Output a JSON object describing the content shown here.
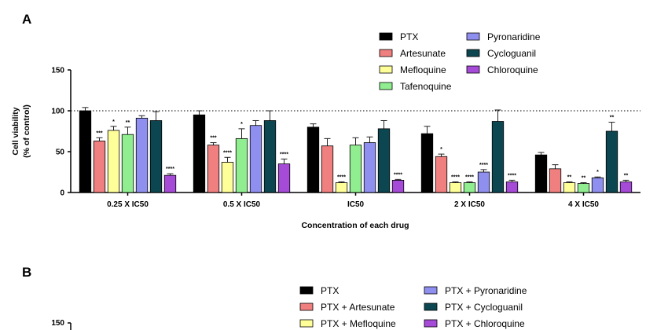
{
  "panel_a": {
    "label": "A",
    "chart_data": {
      "type": "bar",
      "categories": [
        "0.25 X IC50",
        "0.5 X IC50",
        "IC50",
        "2 X IC50",
        "4 X IC50"
      ],
      "ylabel_line1": "Cell viability",
      "ylabel_line2": "(% of control)",
      "xlabel": "Concentration of each drug",
      "ylim": [
        0,
        150
      ],
      "yticks": [
        "0",
        "50",
        "100",
        "150"
      ],
      "reference_line": 100,
      "series": [
        {
          "name": "PTX",
          "color": "#000000",
          "values": [
            100,
            95,
            80,
            72,
            46
          ],
          "errors": [
            4,
            5,
            4,
            9,
            3
          ],
          "stars": [
            "",
            "",
            "",
            "",
            ""
          ]
        },
        {
          "name": "Artesunate",
          "color": "#f08080",
          "values": [
            63,
            58,
            57,
            44,
            29
          ],
          "errors": [
            4,
            3,
            9,
            3,
            5
          ],
          "stars": [
            "***",
            "***",
            "",
            "*",
            ""
          ]
        },
        {
          "name": "Mefloquine",
          "color": "#ffff99",
          "values": [
            76,
            37,
            12,
            12,
            12
          ],
          "errors": [
            5,
            6,
            1,
            1,
            1
          ],
          "stars": [
            "*",
            "****",
            "****",
            "****",
            "**"
          ]
        },
        {
          "name": "Tafenoquine",
          "color": "#90ee90",
          "values": [
            71,
            66,
            58,
            12,
            11
          ],
          "errors": [
            9,
            12,
            9,
            1,
            1
          ],
          "stars": [
            "**",
            "*",
            "",
            "****",
            "**"
          ]
        },
        {
          "name": "Pyronaridine",
          "color": "#8f8fef",
          "values": [
            91,
            82,
            61,
            25,
            18
          ],
          "errors": [
            3,
            6,
            7,
            3,
            1
          ],
          "stars": [
            "",
            "",
            "",
            "****",
            "*"
          ]
        },
        {
          "name": "Cycloguanil",
          "color": "#0c4650",
          "values": [
            88,
            88,
            78,
            87,
            75
          ],
          "errors": [
            11,
            12,
            10,
            14,
            11
          ],
          "stars": [
            "",
            "",
            "",
            "",
            "**"
          ]
        },
        {
          "name": "Chloroquine",
          "color": "#a64ad8",
          "values": [
            21,
            35,
            15,
            13,
            13
          ],
          "errors": [
            2,
            6,
            1,
            2,
            2
          ],
          "stars": [
            "****",
            "****",
            "****",
            "****",
            "**"
          ]
        }
      ]
    }
  },
  "panel_b": {
    "label": "B",
    "chart_data": {
      "type": "bar",
      "yticks_visible": [
        "150"
      ],
      "series": [
        {
          "name": "PTX",
          "color": "#000000"
        },
        {
          "name": "PTX + Artesunate",
          "color": "#f08080"
        },
        {
          "name": "PTX + Mefloquine",
          "color": "#ffff99"
        },
        {
          "name": "PTX + Pyronaridine",
          "color": "#8f8fef"
        },
        {
          "name": "PTX + Cycloguanil",
          "color": "#0c4650"
        },
        {
          "name": "PTX + Chloroquine",
          "color": "#a64ad8"
        }
      ]
    }
  }
}
